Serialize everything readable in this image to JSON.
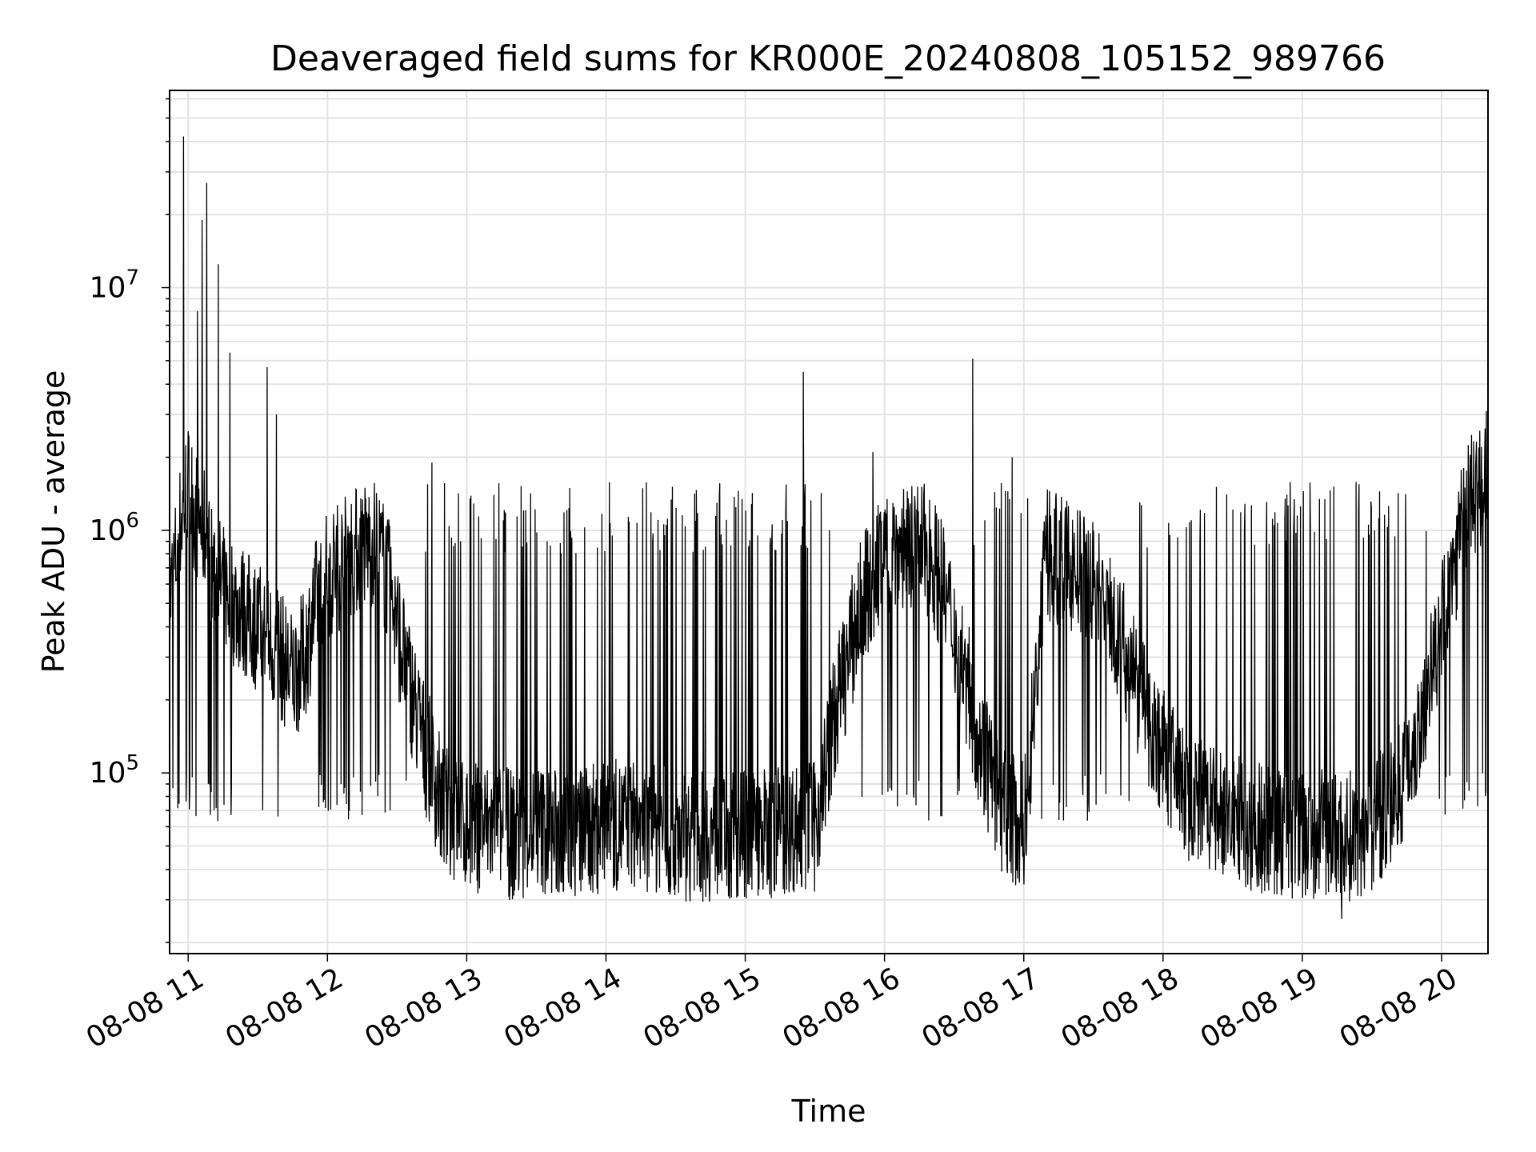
{
  "chart_data": {
    "type": "line",
    "title": "Deaveraged field sums for KR000E_20240808_105152_989766",
    "xlabel": "Time",
    "ylabel": "Peak ADU - average",
    "yscale": "log",
    "ylim": [
      18000,
      65000000
    ],
    "xlim": [
      "2024-08-08 10:52",
      "2024-08-08 20:20"
    ],
    "grid": true,
    "legend": "none",
    "line_color": "#000000",
    "x_ticks": [
      {
        "t": "2024-08-08 11:00",
        "label": "08-08 11"
      },
      {
        "t": "2024-08-08 12:00",
        "label": "08-08 12"
      },
      {
        "t": "2024-08-08 13:00",
        "label": "08-08 13"
      },
      {
        "t": "2024-08-08 14:00",
        "label": "08-08 14"
      },
      {
        "t": "2024-08-08 15:00",
        "label": "08-08 15"
      },
      {
        "t": "2024-08-08 16:00",
        "label": "08-08 16"
      },
      {
        "t": "2024-08-08 17:00",
        "label": "08-08 17"
      },
      {
        "t": "2024-08-08 18:00",
        "label": "08-08 18"
      },
      {
        "t": "2024-08-08 19:00",
        "label": "08-08 19"
      },
      {
        "t": "2024-08-08 20:00",
        "label": "08-08 20"
      }
    ],
    "y_ticks": [
      {
        "value": 100000,
        "base": "10",
        "exp": "5"
      },
      {
        "value": 1000000,
        "base": "10",
        "exp": "6"
      },
      {
        "value": 10000000,
        "base": "10",
        "exp": "7"
      }
    ],
    "series": [
      {
        "x": [
          "2024-08-08 10:52",
          "2024-08-08 10:55",
          "2024-08-08 10:58",
          "2024-08-08 11:00",
          "2024-08-08 11:03",
          "2024-08-08 11:07",
          "2024-08-08 11:10",
          "2024-08-08 11:14",
          "2024-08-08 11:20",
          "2024-08-08 11:25",
          "2024-08-08 11:30",
          "2024-08-08 11:35",
          "2024-08-08 11:40",
          "2024-08-08 11:45",
          "2024-08-08 11:50",
          "2024-08-08 11:55",
          "2024-08-08 12:00",
          "2024-08-08 12:10",
          "2024-08-08 12:20",
          "2024-08-08 12:25",
          "2024-08-08 12:30",
          "2024-08-08 12:40",
          "2024-08-08 12:50",
          "2024-08-08 13:00",
          "2024-08-08 13:10",
          "2024-08-08 13:20",
          "2024-08-08 13:30",
          "2024-08-08 13:40",
          "2024-08-08 13:50",
          "2024-08-08 14:00",
          "2024-08-08 14:10",
          "2024-08-08 14:20",
          "2024-08-08 14:30",
          "2024-08-08 14:40",
          "2024-08-08 14:50",
          "2024-08-08 15:00",
          "2024-08-08 15:10",
          "2024-08-08 15:20",
          "2024-08-08 15:30",
          "2024-08-08 15:40",
          "2024-08-08 15:50",
          "2024-08-08 16:00",
          "2024-08-08 16:10",
          "2024-08-08 16:20",
          "2024-08-08 16:30",
          "2024-08-08 16:40",
          "2024-08-08 16:50",
          "2024-08-08 17:00",
          "2024-08-08 17:10",
          "2024-08-08 17:20",
          "2024-08-08 17:30",
          "2024-08-08 17:40",
          "2024-08-08 17:50",
          "2024-08-08 18:00",
          "2024-08-08 18:10",
          "2024-08-08 18:20",
          "2024-08-08 18:30",
          "2024-08-08 18:40",
          "2024-08-08 18:50",
          "2024-08-08 19:00",
          "2024-08-08 19:10",
          "2024-08-08 19:20",
          "2024-08-08 19:30",
          "2024-08-08 19:40",
          "2024-08-08 19:50",
          "2024-08-08 20:00",
          "2024-08-08 20:10",
          "2024-08-08 20:20"
        ],
        "y": [
          500000,
          800000,
          1300000,
          1500000,
          1200000,
          1000000,
          700000,
          600000,
          500000,
          450000,
          400000,
          350000,
          300000,
          250000,
          300000,
          500000,
          650000,
          800000,
          900000,
          700000,
          400000,
          150000,
          70000,
          60000,
          60000,
          55000,
          60000,
          55000,
          58000,
          60000,
          62000,
          58000,
          56000,
          55000,
          55000,
          56000,
          57000,
          60000,
          60000,
          200000,
          500000,
          800000,
          900000,
          800000,
          400000,
          150000,
          70000,
          60000,
          800000,
          700000,
          600000,
          400000,
          200000,
          120000,
          80000,
          70000,
          65000,
          60000,
          58000,
          55000,
          55000,
          55000,
          60000,
          80000,
          150000,
          400000,
          1200000,
          1800000
        ]
      }
    ],
    "spikes": [
      {
        "x": "2024-08-08 10:58",
        "y": 42000000
      },
      {
        "x": "2024-08-08 11:04",
        "y": 8000000
      },
      {
        "x": "2024-08-08 11:06",
        "y": 19000000
      },
      {
        "x": "2024-08-08 11:08",
        "y": 27000000
      },
      {
        "x": "2024-08-08 11:13",
        "y": 12500000
      },
      {
        "x": "2024-08-08 11:18",
        "y": 5400000
      },
      {
        "x": "2024-08-08 11:34",
        "y": 4700000
      },
      {
        "x": "2024-08-08 11:38",
        "y": 3000000
      },
      {
        "x": "2024-08-08 12:45",
        "y": 1900000
      },
      {
        "x": "2024-08-08 15:25",
        "y": 4500000
      },
      {
        "x": "2024-08-08 15:55",
        "y": 2100000
      },
      {
        "x": "2024-08-08 16:38",
        "y": 5100000
      },
      {
        "x": "2024-08-08 16:55",
        "y": 2000000
      },
      {
        "x": "2024-08-08 19:17",
        "y": 25000
      }
    ]
  }
}
